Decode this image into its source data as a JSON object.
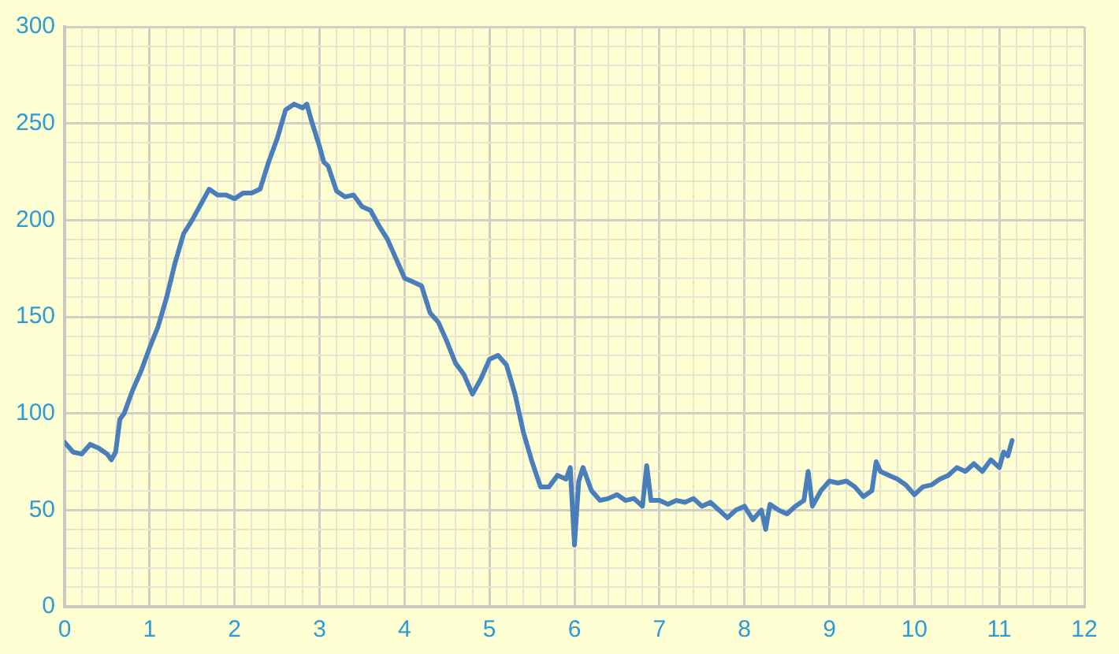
{
  "chart_data": {
    "type": "line",
    "x": [
      0,
      0.1,
      0.2,
      0.3,
      0.4,
      0.5,
      0.55,
      0.6,
      0.65,
      0.7,
      0.8,
      0.9,
      1.0,
      1.1,
      1.2,
      1.3,
      1.4,
      1.5,
      1.6,
      1.7,
      1.8,
      1.9,
      2.0,
      2.1,
      2.2,
      2.3,
      2.4,
      2.5,
      2.6,
      2.7,
      2.8,
      2.85,
      2.9,
      3.0,
      3.05,
      3.1,
      3.2,
      3.3,
      3.4,
      3.5,
      3.6,
      3.7,
      3.8,
      3.9,
      4.0,
      4.1,
      4.2,
      4.3,
      4.4,
      4.5,
      4.6,
      4.7,
      4.8,
      4.9,
      5.0,
      5.1,
      5.2,
      5.3,
      5.4,
      5.5,
      5.6,
      5.7,
      5.8,
      5.9,
      5.95,
      6.0,
      6.05,
      6.1,
      6.2,
      6.3,
      6.4,
      6.5,
      6.6,
      6.7,
      6.8,
      6.85,
      6.9,
      7.0,
      7.1,
      7.2,
      7.3,
      7.4,
      7.5,
      7.6,
      7.7,
      7.8,
      7.9,
      8.0,
      8.1,
      8.2,
      8.25,
      8.3,
      8.4,
      8.5,
      8.6,
      8.7,
      8.75,
      8.8,
      8.9,
      9.0,
      9.1,
      9.2,
      9.3,
      9.4,
      9.5,
      9.55,
      9.6,
      9.7,
      9.8,
      9.9,
      10.0,
      10.1,
      10.2,
      10.3,
      10.4,
      10.5,
      10.6,
      10.7,
      10.8,
      10.9,
      11.0,
      11.05,
      11.1,
      11.15
    ],
    "series": [
      {
        "color": "#4a7ebb",
        "values": [
          85,
          80,
          79,
          84,
          82,
          79,
          76,
          80,
          97,
          100,
          112,
          122,
          134,
          145,
          160,
          178,
          193,
          200,
          208,
          216,
          213,
          213,
          211,
          214,
          214,
          216,
          230,
          242,
          257,
          260,
          258,
          260,
          252,
          238,
          230,
          228,
          215,
          212,
          213,
          207,
          205,
          197,
          190,
          180,
          170,
          168,
          166,
          152,
          147,
          137,
          126,
          120,
          110,
          118,
          128,
          130,
          125,
          110,
          90,
          75,
          62,
          62,
          68,
          66,
          72,
          32,
          65,
          72,
          60,
          55,
          56,
          58,
          55,
          56,
          52,
          73,
          55,
          55,
          53,
          55,
          54,
          56,
          52,
          54,
          50,
          46,
          50,
          52,
          45,
          50,
          40,
          53,
          50,
          48,
          52,
          55,
          70,
          52,
          60,
          65,
          64,
          65,
          62,
          57,
          60,
          75,
          70,
          68,
          66,
          63,
          58,
          62,
          63,
          66,
          68,
          72,
          70,
          74,
          70,
          76,
          72,
          80,
          78,
          86
        ]
      }
    ],
    "xlim": [
      0,
      12
    ],
    "xticks": [
      0,
      {
        "value": 0.2,
        "label": null
      },
      {
        "value": 0.4,
        "label": null
      },
      {
        "value": 0.6,
        "label": null
      },
      {
        "value": 0.8,
        "label": null
      },
      1,
      {
        "value": 1.2,
        "label": null
      },
      {
        "value": 1.4,
        "label": null
      },
      {
        "value": 1.6,
        "label": null
      },
      {
        "value": 1.8,
        "label": null
      },
      2,
      {
        "value": 2.2,
        "label": null
      },
      {
        "value": 2.4,
        "label": null
      },
      {
        "value": 2.6,
        "label": null
      },
      {
        "value": 2.8,
        "label": null
      },
      3,
      {
        "value": 3.2,
        "label": null
      },
      {
        "value": 3.4,
        "label": null
      },
      {
        "value": 3.6,
        "label": null
      },
      {
        "value": 3.8,
        "label": null
      },
      4,
      {
        "value": 4.2,
        "label": null
      },
      {
        "value": 4.4,
        "label": null
      },
      {
        "value": 4.6,
        "label": null
      },
      {
        "value": 4.8,
        "label": null
      },
      5,
      {
        "value": 5.2,
        "label": null
      },
      {
        "value": 5.4,
        "label": null
      },
      {
        "value": 5.6,
        "label": null
      },
      {
        "value": 5.8,
        "label": null
      },
      6,
      {
        "value": 6.2,
        "label": null
      },
      {
        "value": 6.4,
        "label": null
      },
      {
        "value": 6.6,
        "label": null
      },
      {
        "value": 6.8,
        "label": null
      },
      7,
      {
        "value": 7.2,
        "label": null
      },
      {
        "value": 7.4,
        "label": null
      },
      {
        "value": 7.6,
        "label": null
      },
      {
        "value": 7.8,
        "label": null
      },
      8,
      {
        "value": 8.2,
        "label": null
      },
      {
        "value": 8.4,
        "label": null
      },
      {
        "value": 8.6,
        "label": null
      },
      {
        "value": 8.8,
        "label": null
      },
      9,
      {
        "value": 9.2,
        "label": null
      },
      {
        "value": 9.4,
        "label": null
      },
      {
        "value": 9.6,
        "label": null
      },
      {
        "value": 9.8,
        "label": null
      },
      10,
      {
        "value": 10.2,
        "label": null
      },
      {
        "value": 10.4,
        "label": null
      },
      {
        "value": 10.6,
        "label": null
      },
      {
        "value": 10.8,
        "label": null
      },
      11,
      {
        "value": 11.2,
        "label": null
      },
      {
        "value": 11.4,
        "label": null
      },
      {
        "value": 11.6,
        "label": null
      },
      {
        "value": 11.8,
        "label": null
      },
      12
    ],
    "ylim": [
      0,
      300
    ],
    "yticks": [
      0,
      {
        "value": 10,
        "label": null
      },
      {
        "value": 20,
        "label": null
      },
      {
        "value": 30,
        "label": null
      },
      {
        "value": 40,
        "label": null
      },
      50,
      {
        "value": 60,
        "label": null
      },
      {
        "value": 70,
        "label": null
      },
      {
        "value": 80,
        "label": null
      },
      {
        "value": 90,
        "label": null
      },
      100,
      {
        "value": 110,
        "label": null
      },
      {
        "value": 120,
        "label": null
      },
      {
        "value": 130,
        "label": null
      },
      {
        "value": 140,
        "label": null
      },
      150,
      {
        "value": 160,
        "label": null
      },
      {
        "value": 170,
        "label": null
      },
      {
        "value": 180,
        "label": null
      },
      {
        "value": 190,
        "label": null
      },
      200,
      {
        "value": 210,
        "label": null
      },
      {
        "value": 220,
        "label": null
      },
      {
        "value": 230,
        "label": null
      },
      {
        "value": 240,
        "label": null
      },
      250,
      {
        "value": 260,
        "label": null
      },
      {
        "value": 270,
        "label": null
      },
      {
        "value": 280,
        "label": null
      },
      {
        "value": 290,
        "label": null
      },
      300
    ],
    "grid": true,
    "legend": false,
    "marker": "none",
    "line_style": "solid"
  }
}
